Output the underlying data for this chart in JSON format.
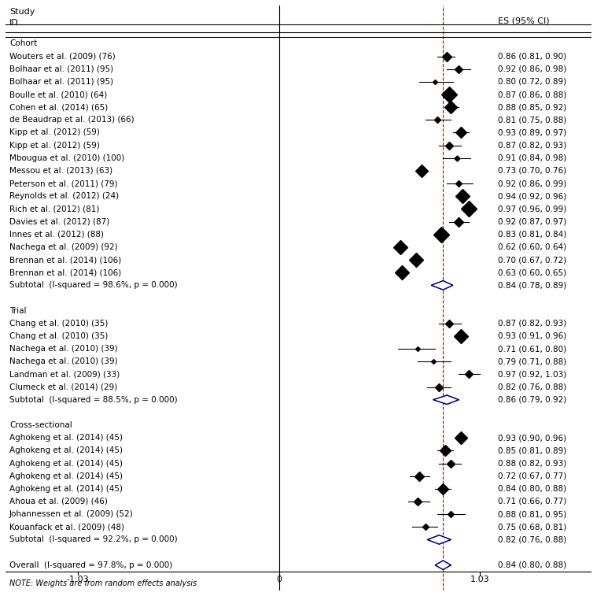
{
  "title_line1": "Study",
  "title_line2": "ID",
  "es_label": "ES (95% CI)",
  "xlim": [
    -1.4,
    1.6
  ],
  "x_ticks": [
    -1.03,
    0,
    1.03
  ],
  "x_tick_labels": [
    "-1.03",
    "0",
    "1.03"
  ],
  "ref_line_x": 0,
  "dashed_line_x": 0.84,
  "note": "NOTE: Weights are from random effects analysis",
  "studies": [
    {
      "label": "Cohort",
      "es": null,
      "ci_lo": null,
      "ci_hi": null,
      "text": "",
      "type": "header"
    },
    {
      "label": "Wouters et al. (2009) (76)",
      "es": 0.86,
      "ci_lo": 0.81,
      "ci_hi": 0.9,
      "text": "0.86 (0.81, 0.90)",
      "type": "study"
    },
    {
      "label": "Bolhaar et al. (2011) (95)",
      "es": 0.92,
      "ci_lo": 0.86,
      "ci_hi": 0.98,
      "text": "0.92 (0.86, 0.98)",
      "type": "study"
    },
    {
      "label": "Bolhaar et al. (2011) (95)",
      "es": 0.8,
      "ci_lo": 0.72,
      "ci_hi": 0.89,
      "text": "0.80 (0.72, 0.89)",
      "type": "study"
    },
    {
      "label": "Boulle et al. (2010) (64)",
      "es": 0.87,
      "ci_lo": 0.86,
      "ci_hi": 0.88,
      "text": "0.87 (0.86, 0.88)",
      "type": "study"
    },
    {
      "label": "Cohen et al. (2014) (65)",
      "es": 0.88,
      "ci_lo": 0.85,
      "ci_hi": 0.92,
      "text": "0.88 (0.85, 0.92)",
      "type": "study"
    },
    {
      "label": "de Beaudrap et al. (2013) (66)",
      "es": 0.81,
      "ci_lo": 0.75,
      "ci_hi": 0.88,
      "text": "0.81 (0.75, 0.88)",
      "type": "study"
    },
    {
      "label": "Kipp et al. (2012) (59)",
      "es": 0.93,
      "ci_lo": 0.89,
      "ci_hi": 0.97,
      "text": "0.93 (0.89, 0.97)",
      "type": "study"
    },
    {
      "label": "Kipp et al. (2012) (59)",
      "es": 0.87,
      "ci_lo": 0.82,
      "ci_hi": 0.93,
      "text": "0.87 (0.82, 0.93)",
      "type": "study"
    },
    {
      "label": "Mbougua et al. (2010) (100)",
      "es": 0.91,
      "ci_lo": 0.84,
      "ci_hi": 0.98,
      "text": "0.91 (0.84, 0.98)",
      "type": "study"
    },
    {
      "label": "Messou et al. (2013) (63)",
      "es": 0.73,
      "ci_lo": 0.7,
      "ci_hi": 0.76,
      "text": "0.73 (0.70, 0.76)",
      "type": "study"
    },
    {
      "label": "Peterson et al. (2011) (79)",
      "es": 0.92,
      "ci_lo": 0.86,
      "ci_hi": 0.99,
      "text": "0.92 (0.86, 0.99)",
      "type": "study"
    },
    {
      "label": "Reynolds et al. (2012) (24)",
      "es": 0.94,
      "ci_lo": 0.92,
      "ci_hi": 0.96,
      "text": "0.94 (0.92, 0.96)",
      "type": "study"
    },
    {
      "label": "Rich et al. (2012) (81)",
      "es": 0.97,
      "ci_lo": 0.96,
      "ci_hi": 0.99,
      "text": "0.97 (0.96, 0.99)",
      "type": "study"
    },
    {
      "label": "Davies et al. (2012) (87)",
      "es": 0.92,
      "ci_lo": 0.87,
      "ci_hi": 0.97,
      "text": "0.92 (0.87, 0.97)",
      "type": "study"
    },
    {
      "label": "Innes et al. (2012) (88)",
      "es": 0.83,
      "ci_lo": 0.81,
      "ci_hi": 0.84,
      "text": "0.83 (0.81, 0.84)",
      "type": "study"
    },
    {
      "label": "Nachega et al. (2009) (92)",
      "es": 0.62,
      "ci_lo": 0.6,
      "ci_hi": 0.64,
      "text": "0.62 (0.60, 0.64)",
      "type": "study"
    },
    {
      "label": "Brennan et al. (2014) (106)",
      "es": 0.7,
      "ci_lo": 0.67,
      "ci_hi": 0.72,
      "text": "0.70 (0.67, 0.72)",
      "type": "study"
    },
    {
      "label": "Brennan et al. (2014) (106)",
      "es": 0.63,
      "ci_lo": 0.6,
      "ci_hi": 0.65,
      "text": "0.63 (0.60, 0.65)",
      "type": "study"
    },
    {
      "label": "Subtotal  (I-squared = 98.6%, p = 0.000)",
      "es": 0.84,
      "ci_lo": 0.78,
      "ci_hi": 0.89,
      "text": "0.84 (0.78, 0.89)",
      "type": "subtotal"
    },
    {
      "label": "",
      "es": null,
      "ci_lo": null,
      "ci_hi": null,
      "text": "",
      "type": "blank"
    },
    {
      "label": "Trial",
      "es": null,
      "ci_lo": null,
      "ci_hi": null,
      "text": "",
      "type": "header"
    },
    {
      "label": "Chang et al. (2010) (35)",
      "es": 0.87,
      "ci_lo": 0.82,
      "ci_hi": 0.93,
      "text": "0.87 (0.82, 0.93)",
      "type": "study"
    },
    {
      "label": "Chang et al. (2010) (35)",
      "es": 0.93,
      "ci_lo": 0.91,
      "ci_hi": 0.96,
      "text": "0.93 (0.91, 0.96)",
      "type": "study"
    },
    {
      "label": "Nachega et al. (2010) (39)",
      "es": 0.71,
      "ci_lo": 0.61,
      "ci_hi": 0.8,
      "text": "0.71 (0.61, 0.80)",
      "type": "study"
    },
    {
      "label": "Nachega et al. (2010) (39)",
      "es": 0.79,
      "ci_lo": 0.71,
      "ci_hi": 0.88,
      "text": "0.79 (0.71, 0.88)",
      "type": "study"
    },
    {
      "label": "Landman et al. (2009) (33)",
      "es": 0.97,
      "ci_lo": 0.92,
      "ci_hi": 1.03,
      "text": "0.97 (0.92, 1.03)",
      "type": "study"
    },
    {
      "label": "Clumeck et al. (2014) (29)",
      "es": 0.82,
      "ci_lo": 0.76,
      "ci_hi": 0.88,
      "text": "0.82 (0.76, 0.88)",
      "type": "study"
    },
    {
      "label": "Subtotal  (I-squared = 88.5%, p = 0.000)",
      "es": 0.86,
      "ci_lo": 0.79,
      "ci_hi": 0.92,
      "text": "0.86 (0.79, 0.92)",
      "type": "subtotal"
    },
    {
      "label": "",
      "es": null,
      "ci_lo": null,
      "ci_hi": null,
      "text": "",
      "type": "blank"
    },
    {
      "label": "Cross-sectional",
      "es": null,
      "ci_lo": null,
      "ci_hi": null,
      "text": "",
      "type": "header"
    },
    {
      "label": "Aghokeng et al. (2014) (45)",
      "es": 0.93,
      "ci_lo": 0.9,
      "ci_hi": 0.96,
      "text": "0.93 (0.90, 0.96)",
      "type": "study"
    },
    {
      "label": "Aghokeng et al. (2014) (45)",
      "es": 0.85,
      "ci_lo": 0.81,
      "ci_hi": 0.89,
      "text": "0.85 (0.81, 0.89)",
      "type": "study"
    },
    {
      "label": "Aghokeng et al. (2014) (45)",
      "es": 0.88,
      "ci_lo": 0.82,
      "ci_hi": 0.93,
      "text": "0.88 (0.82, 0.93)",
      "type": "study"
    },
    {
      "label": "Aghokeng et al. (2014) (45)",
      "es": 0.72,
      "ci_lo": 0.67,
      "ci_hi": 0.77,
      "text": "0.72 (0.67, 0.77)",
      "type": "study"
    },
    {
      "label": "Aghokeng et al. (2014) (45)",
      "es": 0.84,
      "ci_lo": 0.8,
      "ci_hi": 0.88,
      "text": "0.84 (0.80, 0.88)",
      "type": "study"
    },
    {
      "label": "Ahoua et al. (2009) (46)",
      "es": 0.71,
      "ci_lo": 0.66,
      "ci_hi": 0.77,
      "text": "0.71 (0.66, 0.77)",
      "type": "study"
    },
    {
      "label": "Johannessen et al. (2009) (52)",
      "es": 0.88,
      "ci_lo": 0.81,
      "ci_hi": 0.95,
      "text": "0.88 (0.81, 0.95)",
      "type": "study"
    },
    {
      "label": "Kouanfack et al. (2009) (48)",
      "es": 0.75,
      "ci_lo": 0.68,
      "ci_hi": 0.81,
      "text": "0.75 (0.68, 0.81)",
      "type": "study"
    },
    {
      "label": "Subtotal  (I-squared = 92.2%, p = 0.000)",
      "es": 0.82,
      "ci_lo": 0.76,
      "ci_hi": 0.88,
      "text": "0.82 (0.76, 0.88)",
      "type": "subtotal"
    },
    {
      "label": ".",
      "es": null,
      "ci_lo": null,
      "ci_hi": null,
      "text": "",
      "type": "blank"
    },
    {
      "label": "Overall  (I-squared = 97.8%, p = 0.000)",
      "es": 0.84,
      "ci_lo": 0.8,
      "ci_hi": 0.88,
      "text": "0.84 (0.80, 0.88)",
      "type": "overall"
    }
  ]
}
